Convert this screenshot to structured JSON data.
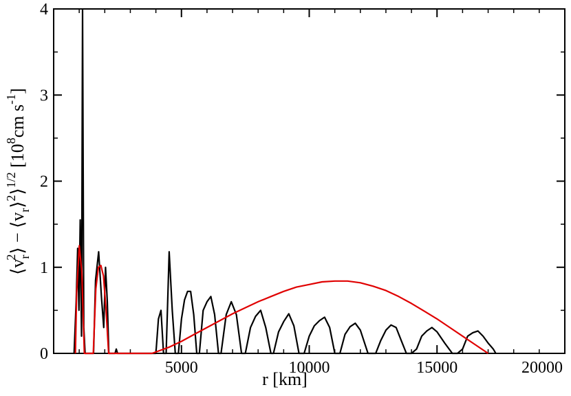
{
  "chart_data": {
    "type": "line",
    "xlabel": "r [km]",
    "ylabel_parts": {
      "a": "⟨v",
      "a_sub": "r",
      "a_sup": "2",
      "b": "⟩ − ⟨v",
      "b_sub": "r",
      "c": "⟩",
      "c_sup": "2",
      "d": "⟩",
      "d_sup": "1/2",
      "unit_open": " [10",
      "unit_sup": "8",
      "unit_mid": "cm s",
      "unit_sup2": "-1",
      "unit_close": "]"
    },
    "xlim": [
      0,
      20000
    ],
    "ylim": [
      0,
      4
    ],
    "x_ticks": [
      5000,
      10000,
      15000,
      20000
    ],
    "x_tick_labels": [
      "5000",
      "10000",
      "15000",
      "20000"
    ],
    "y_ticks": [
      0,
      1,
      2,
      3,
      4
    ],
    "y_tick_labels": [
      "0",
      "1",
      "2",
      "3",
      "4"
    ],
    "grid": false,
    "series": [
      {
        "color": "#000000",
        "points": [
          [
            800,
            0
          ],
          [
            880,
            0.6
          ],
          [
            940,
            1.22
          ],
          [
            990,
            0.5
          ],
          [
            1040,
            1.55
          ],
          [
            1090,
            0.2
          ],
          [
            1130,
            4.0
          ],
          [
            1180,
            0.3
          ],
          [
            1230,
            0
          ],
          [
            1560,
            0
          ],
          [
            1640,
            0.85
          ],
          [
            1760,
            1.18
          ],
          [
            1870,
            0.65
          ],
          [
            1960,
            0.3
          ],
          [
            2030,
            1.0
          ],
          [
            2100,
            0.6
          ],
          [
            2160,
            0
          ],
          [
            2400,
            0
          ],
          [
            2450,
            0.05
          ],
          [
            2500,
            0
          ],
          [
            4000,
            0
          ],
          [
            4100,
            0.4
          ],
          [
            4200,
            0.5
          ],
          [
            4300,
            0
          ],
          [
            4400,
            0
          ],
          [
            4520,
            1.18
          ],
          [
            4640,
            0.5
          ],
          [
            4760,
            0
          ],
          [
            4880,
            0
          ],
          [
            5000,
            0.4
          ],
          [
            5120,
            0.62
          ],
          [
            5240,
            0.72
          ],
          [
            5360,
            0.72
          ],
          [
            5480,
            0.45
          ],
          [
            5600,
            0
          ],
          [
            5700,
            0
          ],
          [
            5850,
            0.5
          ],
          [
            6000,
            0.6
          ],
          [
            6150,
            0.66
          ],
          [
            6300,
            0.45
          ],
          [
            6450,
            0
          ],
          [
            6550,
            0
          ],
          [
            6750,
            0.45
          ],
          [
            6950,
            0.6
          ],
          [
            7150,
            0.45
          ],
          [
            7350,
            0
          ],
          [
            7500,
            0
          ],
          [
            7700,
            0.3
          ],
          [
            7900,
            0.43
          ],
          [
            8100,
            0.5
          ],
          [
            8300,
            0.3
          ],
          [
            8500,
            0
          ],
          [
            8600,
            0
          ],
          [
            8800,
            0.25
          ],
          [
            9000,
            0.37
          ],
          [
            9200,
            0.46
          ],
          [
            9400,
            0.32
          ],
          [
            9600,
            0
          ],
          [
            9800,
            0
          ],
          [
            10000,
            0.2
          ],
          [
            10200,
            0.32
          ],
          [
            10400,
            0.38
          ],
          [
            10600,
            0.42
          ],
          [
            10800,
            0.3
          ],
          [
            11000,
            0
          ],
          [
            11200,
            0
          ],
          [
            11400,
            0.22
          ],
          [
            11600,
            0.31
          ],
          [
            11800,
            0.35
          ],
          [
            12000,
            0.27
          ],
          [
            12300,
            0
          ],
          [
            12600,
            0
          ],
          [
            12800,
            0.15
          ],
          [
            13000,
            0.27
          ],
          [
            13200,
            0.33
          ],
          [
            13400,
            0.3
          ],
          [
            13600,
            0.15
          ],
          [
            13800,
            0
          ],
          [
            14000,
            0
          ],
          [
            14200,
            0.05
          ],
          [
            14400,
            0.2
          ],
          [
            14600,
            0.26
          ],
          [
            14800,
            0.3
          ],
          [
            15000,
            0.25
          ],
          [
            15300,
            0.12
          ],
          [
            15600,
            0
          ],
          [
            15800,
            0
          ],
          [
            16000,
            0.05
          ],
          [
            16200,
            0.2
          ],
          [
            16400,
            0.24
          ],
          [
            16600,
            0.26
          ],
          [
            16800,
            0.2
          ],
          [
            17000,
            0.12
          ],
          [
            17200,
            0.05
          ],
          [
            17300,
            0
          ]
        ]
      },
      {
        "color": "#e00000",
        "points": [
          [
            850,
            0
          ],
          [
            900,
            0.7
          ],
          [
            1000,
            1.25
          ],
          [
            1100,
            0.95
          ],
          [
            1200,
            0
          ],
          [
            1550,
            0
          ],
          [
            1650,
            0.75
          ],
          [
            1750,
            1.0
          ],
          [
            1850,
            1.02
          ],
          [
            1950,
            0.9
          ],
          [
            2050,
            0.5
          ],
          [
            2150,
            0
          ],
          [
            3850,
            0
          ],
          [
            4500,
            0.07
          ],
          [
            5000,
            0.14
          ],
          [
            5500,
            0.22
          ],
          [
            6000,
            0.3
          ],
          [
            6500,
            0.38
          ],
          [
            7000,
            0.46
          ],
          [
            7500,
            0.53
          ],
          [
            8000,
            0.6
          ],
          [
            8500,
            0.66
          ],
          [
            9000,
            0.72
          ],
          [
            9500,
            0.77
          ],
          [
            10000,
            0.8
          ],
          [
            10500,
            0.83
          ],
          [
            11000,
            0.84
          ],
          [
            11500,
            0.84
          ],
          [
            12000,
            0.82
          ],
          [
            12500,
            0.78
          ],
          [
            13000,
            0.73
          ],
          [
            13500,
            0.66
          ],
          [
            14000,
            0.58
          ],
          [
            14500,
            0.49
          ],
          [
            15000,
            0.4
          ],
          [
            15500,
            0.3
          ],
          [
            16000,
            0.2
          ],
          [
            16500,
            0.1
          ],
          [
            17000,
            0
          ]
        ]
      }
    ]
  }
}
